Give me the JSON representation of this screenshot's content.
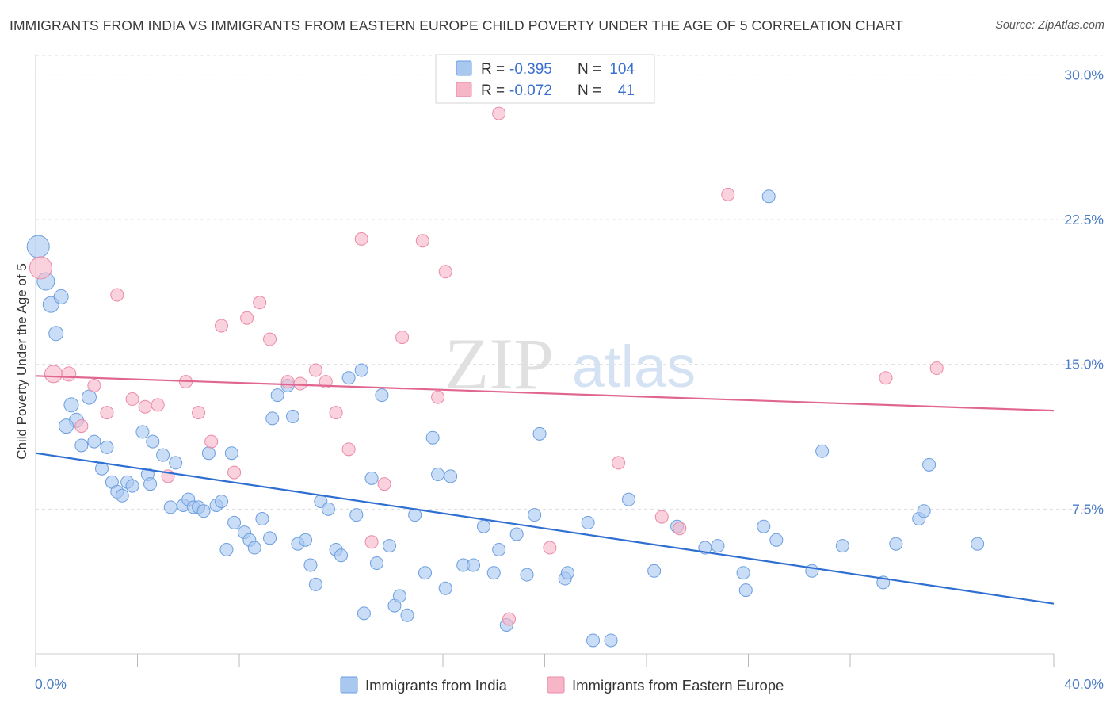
{
  "title": "IMMIGRANTS FROM INDIA VS IMMIGRANTS FROM EASTERN EUROPE CHILD POVERTY UNDER THE AGE OF 5 CORRELATION CHART",
  "source": "Source: ZipAtlas.com",
  "watermark": {
    "zip": "ZIP",
    "atlas": "atlas"
  },
  "legend_top": {
    "r_label": "R =",
    "n_label": "N =",
    "rows": [
      {
        "r": "-0.395",
        "n": "104",
        "color": "#a9c8f0"
      },
      {
        "r": "-0.072",
        "n": "41",
        "color": "#f7b6c8"
      }
    ]
  },
  "chart_data": {
    "type": "scatter",
    "title": "IMMIGRANTS FROM INDIA VS IMMIGRANTS FROM EASTERN EUROPE CHILD POVERTY UNDER THE AGE OF 5 CORRELATION CHART",
    "xlabel": "",
    "ylabel": "Child Poverty Under the Age of 5",
    "xlim": [
      0,
      40
    ],
    "ylim": [
      0,
      31
    ],
    "x_tick_labels": [
      "0.0%",
      "40.0%"
    ],
    "y_ticks": [
      7.5,
      15.0,
      22.5,
      30.0
    ],
    "y_tick_labels": [
      "7.5%",
      "15.0%",
      "22.5%",
      "30.0%"
    ],
    "grid": "horizontal dashed",
    "legend_position": "bottom-center",
    "series": [
      {
        "name": "Immigrants from India",
        "color": "#a9c8f0",
        "stroke": "#6b9ee0",
        "trend": {
          "x": [
            0,
            40
          ],
          "y": [
            10.4,
            2.6
          ],
          "color": "#2f6fd1"
        },
        "points": [
          [
            0.1,
            21.1,
            14
          ],
          [
            0.4,
            19.3,
            11
          ],
          [
            0.6,
            18.1,
            10
          ],
          [
            1.0,
            18.5,
            9
          ],
          [
            0.8,
            16.6,
            9
          ],
          [
            1.4,
            12.9,
            9
          ],
          [
            1.6,
            12.1,
            9
          ],
          [
            1.2,
            11.8,
            9
          ],
          [
            2.1,
            13.3,
            9
          ],
          [
            1.8,
            10.8,
            8
          ],
          [
            2.3,
            11.0,
            8
          ],
          [
            2.8,
            10.7,
            8
          ],
          [
            2.6,
            9.6,
            8
          ],
          [
            3.0,
            8.9,
            8
          ],
          [
            3.2,
            8.4,
            8
          ],
          [
            3.4,
            8.2,
            8
          ],
          [
            3.6,
            8.9,
            8
          ],
          [
            3.8,
            8.7,
            8
          ],
          [
            4.2,
            11.5,
            8
          ],
          [
            4.4,
            9.3,
            8
          ],
          [
            4.5,
            8.8,
            8
          ],
          [
            4.6,
            11.0,
            8
          ],
          [
            5.0,
            10.3,
            8
          ],
          [
            5.5,
            9.9,
            8
          ],
          [
            5.3,
            7.6,
            8
          ],
          [
            5.8,
            7.7,
            8
          ],
          [
            6.0,
            8.0,
            8
          ],
          [
            6.2,
            7.6,
            8
          ],
          [
            6.4,
            7.6,
            8
          ],
          [
            6.6,
            7.4,
            8
          ],
          [
            6.8,
            10.4,
            8
          ],
          [
            7.1,
            7.7,
            8
          ],
          [
            7.3,
            7.9,
            8
          ],
          [
            7.7,
            10.4,
            8
          ],
          [
            7.5,
            5.4,
            8
          ],
          [
            7.8,
            6.8,
            8
          ],
          [
            8.2,
            6.3,
            8
          ],
          [
            8.4,
            5.9,
            8
          ],
          [
            8.6,
            5.5,
            8
          ],
          [
            8.9,
            7.0,
            8
          ],
          [
            9.2,
            6.0,
            8
          ],
          [
            9.3,
            12.2,
            8
          ],
          [
            9.5,
            13.4,
            8
          ],
          [
            9.9,
            13.9,
            8
          ],
          [
            10.1,
            12.3,
            8
          ],
          [
            10.3,
            5.7,
            8
          ],
          [
            10.6,
            5.9,
            8
          ],
          [
            10.8,
            4.6,
            8
          ],
          [
            11.0,
            3.6,
            8
          ],
          [
            11.2,
            7.9,
            8
          ],
          [
            11.5,
            7.5,
            8
          ],
          [
            11.8,
            5.4,
            8
          ],
          [
            12.0,
            5.1,
            8
          ],
          [
            12.3,
            14.3,
            8
          ],
          [
            12.6,
            7.2,
            8
          ],
          [
            12.8,
            14.7,
            8
          ],
          [
            12.9,
            2.1,
            8
          ],
          [
            13.2,
            9.1,
            8
          ],
          [
            13.4,
            4.7,
            8
          ],
          [
            13.6,
            13.4,
            8
          ],
          [
            13.9,
            5.6,
            8
          ],
          [
            14.1,
            2.5,
            8
          ],
          [
            14.3,
            3.0,
            8
          ],
          [
            14.6,
            2.0,
            8
          ],
          [
            14.9,
            7.2,
            8
          ],
          [
            15.3,
            4.2,
            8
          ],
          [
            15.6,
            11.2,
            8
          ],
          [
            15.8,
            9.3,
            8
          ],
          [
            16.1,
            3.4,
            8
          ],
          [
            16.3,
            9.2,
            8
          ],
          [
            16.8,
            4.6,
            8
          ],
          [
            17.2,
            4.6,
            8
          ],
          [
            17.6,
            6.6,
            8
          ],
          [
            18.0,
            4.2,
            8
          ],
          [
            18.2,
            5.4,
            8
          ],
          [
            18.5,
            1.5,
            8
          ],
          [
            18.9,
            6.2,
            8
          ],
          [
            19.3,
            4.1,
            8
          ],
          [
            19.6,
            7.2,
            8
          ],
          [
            19.8,
            11.4,
            8
          ],
          [
            20.8,
            3.9,
            8
          ],
          [
            20.9,
            4.2,
            8
          ],
          [
            21.7,
            6.8,
            8
          ],
          [
            21.9,
            0.7,
            8
          ],
          [
            22.6,
            0.7,
            8
          ],
          [
            23.3,
            8.0,
            8
          ],
          [
            24.3,
            4.3,
            8
          ],
          [
            25.2,
            6.6,
            8
          ],
          [
            26.3,
            5.5,
            8
          ],
          [
            26.8,
            5.6,
            8
          ],
          [
            27.8,
            4.2,
            8
          ],
          [
            27.9,
            3.3,
            8
          ],
          [
            28.6,
            6.6,
            8
          ],
          [
            30.5,
            4.3,
            8
          ],
          [
            30.9,
            10.5,
            8
          ],
          [
            28.8,
            23.7,
            8
          ],
          [
            29.1,
            5.9,
            8
          ],
          [
            31.7,
            5.6,
            8
          ],
          [
            33.3,
            3.7,
            8
          ],
          [
            33.8,
            5.7,
            8
          ],
          [
            34.7,
            7.0,
            8
          ],
          [
            34.9,
            7.4,
            8
          ],
          [
            35.1,
            9.8,
            8
          ],
          [
            37.0,
            5.7,
            8
          ]
        ]
      },
      {
        "name": "Immigrants from Eastern Europe",
        "color": "#f7b6c8",
        "stroke": "#ec8aa8",
        "trend": {
          "x": [
            0,
            40
          ],
          "y": [
            14.4,
            12.6
          ],
          "color": "#e06690"
        },
        "points": [
          [
            0.2,
            20.0,
            14
          ],
          [
            0.7,
            14.5,
            11
          ],
          [
            1.3,
            14.5,
            9
          ],
          [
            1.8,
            11.8,
            8
          ],
          [
            2.3,
            13.9,
            8
          ],
          [
            2.8,
            12.5,
            8
          ],
          [
            3.2,
            18.6,
            8
          ],
          [
            3.8,
            13.2,
            8
          ],
          [
            4.3,
            12.8,
            8
          ],
          [
            4.8,
            12.9,
            8
          ],
          [
            5.2,
            9.2,
            8
          ],
          [
            5.9,
            14.1,
            8
          ],
          [
            6.4,
            12.5,
            8
          ],
          [
            6.9,
            11.0,
            8
          ],
          [
            7.3,
            17.0,
            8
          ],
          [
            7.8,
            9.4,
            8
          ],
          [
            8.3,
            17.4,
            8
          ],
          [
            8.8,
            18.2,
            8
          ],
          [
            9.2,
            16.3,
            8
          ],
          [
            9.9,
            14.1,
            8
          ],
          [
            10.4,
            14.0,
            8
          ],
          [
            11.0,
            14.7,
            8
          ],
          [
            11.4,
            14.1,
            8
          ],
          [
            11.8,
            12.5,
            8
          ],
          [
            12.3,
            10.6,
            8
          ],
          [
            12.8,
            21.5,
            8
          ],
          [
            13.2,
            5.8,
            8
          ],
          [
            13.7,
            8.8,
            8
          ],
          [
            14.4,
            16.4,
            8
          ],
          [
            15.2,
            21.4,
            8
          ],
          [
            15.8,
            13.3,
            8
          ],
          [
            16.1,
            19.8,
            8
          ],
          [
            18.2,
            28.0,
            8
          ],
          [
            18.6,
            1.8,
            8
          ],
          [
            20.2,
            5.5,
            8
          ],
          [
            22.9,
            9.9,
            8
          ],
          [
            24.6,
            7.1,
            8
          ],
          [
            25.3,
            6.5,
            8
          ],
          [
            27.2,
            23.8,
            8
          ],
          [
            33.4,
            14.3,
            8
          ],
          [
            35.4,
            14.8,
            8
          ]
        ]
      }
    ]
  }
}
